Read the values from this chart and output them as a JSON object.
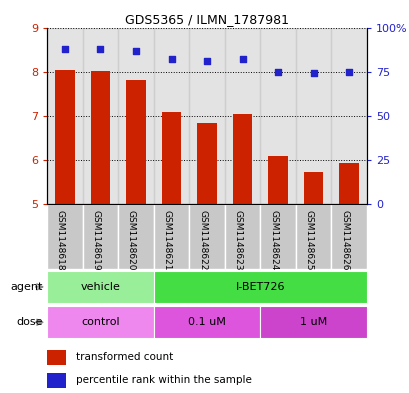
{
  "title": "GDS5365 / ILMN_1787981",
  "samples": [
    "GSM1148618",
    "GSM1148619",
    "GSM1148620",
    "GSM1148621",
    "GSM1148622",
    "GSM1148623",
    "GSM1148624",
    "GSM1148625",
    "GSM1148626"
  ],
  "transformed_count": [
    8.03,
    8.01,
    7.82,
    7.08,
    6.83,
    7.05,
    6.1,
    5.73,
    5.93
  ],
  "percentile_rank": [
    88,
    88,
    87,
    82,
    81,
    82,
    75,
    74,
    75
  ],
  "ylim_left": [
    5,
    9
  ],
  "ylim_right": [
    0,
    100
  ],
  "yticks_left": [
    5,
    6,
    7,
    8,
    9
  ],
  "yticks_right": [
    0,
    25,
    50,
    75,
    100
  ],
  "ytick_labels_right": [
    "0",
    "25",
    "50",
    "75",
    "100%"
  ],
  "bar_color": "#cc2200",
  "dot_color": "#2222cc",
  "bar_bottom": 5,
  "agent_labels": [
    {
      "label": "vehicle",
      "start": 0,
      "end": 3,
      "color": "#99ee99"
    },
    {
      "label": "I-BET726",
      "start": 3,
      "end": 9,
      "color": "#44dd44"
    }
  ],
  "dose_labels": [
    {
      "label": "control",
      "start": 0,
      "end": 3,
      "color": "#ee88ee"
    },
    {
      "label": "0.1 uM",
      "start": 3,
      "end": 6,
      "color": "#dd55dd"
    },
    {
      "label": "1 uM",
      "start": 6,
      "end": 9,
      "color": "#cc44cc"
    }
  ],
  "legend_red": "transformed count",
  "legend_blue": "percentile rank within the sample",
  "bar_width": 0.55,
  "col_bg_color": "#c8c8c8",
  "agent_row_label": "agent",
  "dose_row_label": "dose",
  "fig_bg": "#ffffff"
}
